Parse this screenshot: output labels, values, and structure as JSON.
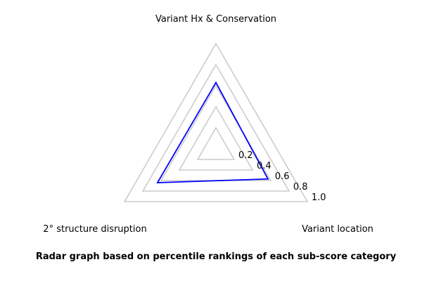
{
  "chart_data": {
    "type": "radar",
    "axes": [
      "Variant Hx & Conservation",
      "Variant location",
      "2° structure disruption"
    ],
    "rlim": [
      0,
      1.0
    ],
    "ticks": [
      0.2,
      0.4,
      0.6,
      0.8,
      1.0
    ],
    "tick_labels": [
      "0.2",
      "0.4",
      "0.6",
      "0.8",
      "1.0"
    ],
    "series": [
      {
        "values": [
          0.63,
          0.57,
          0.64
        ],
        "color": "#0000ff"
      }
    ],
    "grid_color": "#cccccc",
    "caption": "Radar graph based on percentile rankings of each sub-score category"
  }
}
